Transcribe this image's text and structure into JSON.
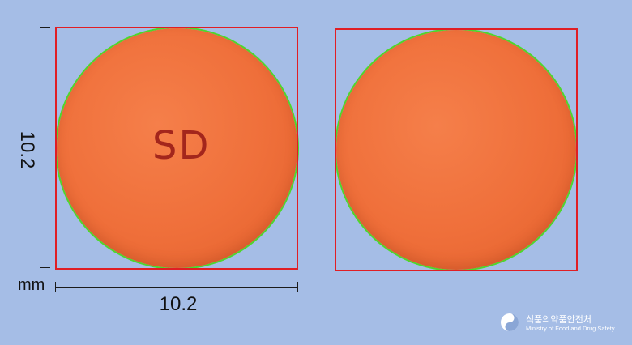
{
  "dimensions": {
    "height_label": "10.2",
    "width_label": "10.2",
    "unit": "mm"
  },
  "front": {
    "imprint": "SD"
  },
  "pill_color": "#ef6f3a",
  "outline_color": "#e01e24",
  "contour_color": "#4fd62b",
  "watermark": {
    "korean": "식품의약품안전처",
    "english": "Ministry of Food and Drug Safety",
    "logo_icon": "taegeuk-logo-icon"
  }
}
